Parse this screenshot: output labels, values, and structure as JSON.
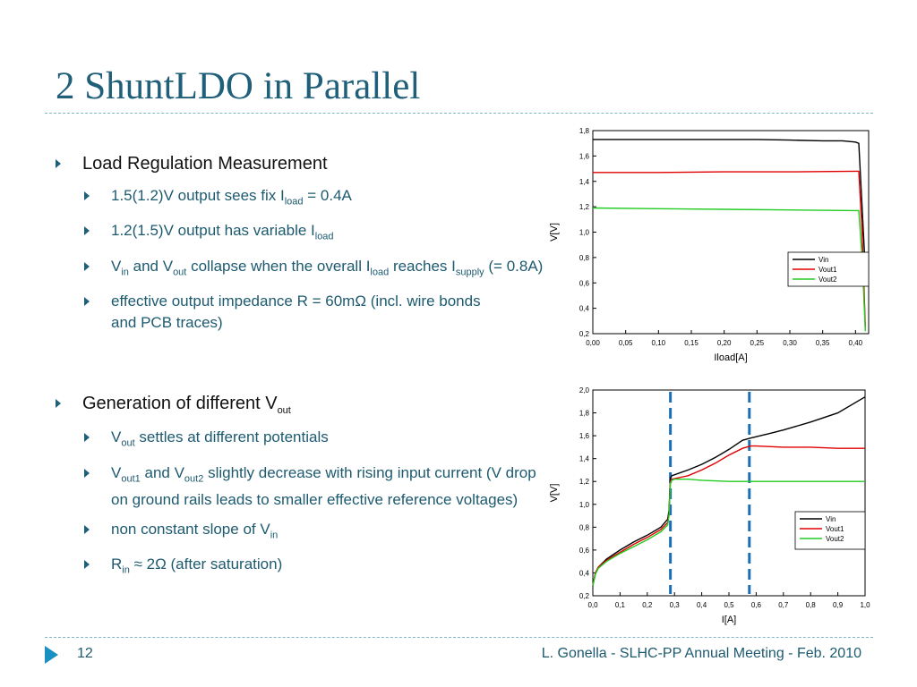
{
  "slide": {
    "title": "2 ShuntLDO in Parallel",
    "page_number": "12",
    "footer": "L. Gonella - SLHC-PP Annual Meeting - Feb. 2010"
  },
  "bullets": {
    "s1": {
      "heading": "Load Regulation Measurement",
      "i1": {
        "a": "1.5(1.2)V output sees fix I",
        "b": "load",
        "c": " = 0.4A"
      },
      "i2": {
        "a": "1.2(1.5)V output has variable I",
        "b": "load"
      },
      "i3": {
        "a": "V",
        "b": "in",
        "c": " and V",
        "d": "out",
        "e": " collapse when the overall I",
        "f": "load",
        "g": " reaches I",
        "h": "supply",
        "i": " (= 0.8A)"
      },
      "i4": {
        "text": "effective output impedance R = 60mΩ (incl. wire bonds and PCB traces)"
      }
    },
    "s2": {
      "heading_a": "Generation of different V",
      "heading_b": "out",
      "i1": {
        "a": "V",
        "b": "out",
        "c": " settles at different potentials"
      },
      "i2": {
        "a": "V",
        "b": "out1",
        "c": " and V",
        "d": "out2",
        "e": " slightly decrease with rising input current (V drop on ground rails leads to smaller effective reference voltages)"
      },
      "i3": {
        "a": "non constant slope of V",
        "b": "in"
      },
      "i4": {
        "a": "R",
        "b": "in",
        "c": " ≈ 2Ω (after saturation)"
      }
    }
  },
  "chart_data": [
    {
      "type": "line",
      "xlabel": "Iload[A]",
      "ylabel": "V[V]",
      "xlim": [
        0,
        0.42
      ],
      "ylim": [
        0.2,
        1.8
      ],
      "xticks": [
        "0,00",
        "0,05",
        "0,10",
        "0,15",
        "0,20",
        "0,25",
        "0,30",
        "0,35",
        "0,40"
      ],
      "xtick_values": [
        0,
        0.05,
        0.1,
        0.15,
        0.2,
        0.25,
        0.3,
        0.35,
        0.4
      ],
      "yticks": [
        "0,2",
        "0,4",
        "0,6",
        "0,8",
        "1,0",
        "1,2",
        "1,4",
        "1,6",
        "1,8"
      ],
      "ytick_values": [
        0.2,
        0.4,
        0.6,
        0.8,
        1.0,
        1.2,
        1.4,
        1.6,
        1.8
      ],
      "legend": "right-middle",
      "series": [
        {
          "name": "Vin",
          "color": "#000000",
          "x": [
            0,
            0.05,
            0.1,
            0.15,
            0.2,
            0.25,
            0.3,
            0.35,
            0.38,
            0.4,
            0.405,
            0.41,
            0.415
          ],
          "y": [
            1.73,
            1.73,
            1.73,
            1.73,
            1.73,
            1.73,
            1.725,
            1.72,
            1.72,
            1.71,
            1.7,
            1.2,
            0.7
          ]
        },
        {
          "name": "Vout1",
          "color": "#e00000",
          "x": [
            0,
            0.1,
            0.2,
            0.3,
            0.4,
            0.405,
            0.41,
            0.415
          ],
          "y": [
            1.47,
            1.47,
            1.475,
            1.475,
            1.48,
            1.48,
            1.0,
            0.25
          ]
        },
        {
          "name": "Vout2",
          "color": "#22cc22",
          "x": [
            0,
            0.1,
            0.2,
            0.3,
            0.4,
            0.405,
            0.41,
            0.415
          ],
          "y": [
            1.19,
            1.185,
            1.18,
            1.175,
            1.17,
            1.17,
            0.8,
            0.22
          ]
        }
      ]
    },
    {
      "type": "line",
      "xlabel": "I[A]",
      "ylabel": "V[V]",
      "xlim": [
        0,
        1.0
      ],
      "ylim": [
        0.2,
        2.0
      ],
      "xticks": [
        "0,0",
        "0,1",
        "0,2",
        "0,3",
        "0,4",
        "0,5",
        "0,6",
        "0,7",
        "0,8",
        "0,9",
        "1,0"
      ],
      "xtick_values": [
        0,
        0.1,
        0.2,
        0.3,
        0.4,
        0.5,
        0.6,
        0.7,
        0.8,
        0.9,
        1.0
      ],
      "yticks": [
        "0,2",
        "0,4",
        "0,6",
        "0,8",
        "1,0",
        "1,2",
        "1,4",
        "1,6",
        "1,8",
        "2,0"
      ],
      "ytick_values": [
        0.2,
        0.4,
        0.6,
        0.8,
        1.0,
        1.2,
        1.4,
        1.6,
        1.8,
        2.0
      ],
      "legend": "bottom-right",
      "vlines": [
        0.285,
        0.575
      ],
      "vline_color": "#1a6fb5",
      "series": [
        {
          "name": "Vin",
          "color": "#000000",
          "x": [
            0,
            0.01,
            0.02,
            0.05,
            0.1,
            0.15,
            0.2,
            0.25,
            0.275,
            0.28,
            0.285,
            0.29,
            0.35,
            0.4,
            0.45,
            0.5,
            0.55,
            0.58,
            0.65,
            0.7,
            0.8,
            0.9,
            1.0
          ],
          "y": [
            0.29,
            0.4,
            0.45,
            0.52,
            0.6,
            0.67,
            0.73,
            0.8,
            0.87,
            0.95,
            1.23,
            1.25,
            1.3,
            1.35,
            1.41,
            1.48,
            1.56,
            1.58,
            1.62,
            1.65,
            1.72,
            1.8,
            1.94
          ]
        },
        {
          "name": "Vout1",
          "color": "#e00000",
          "x": [
            0,
            0.01,
            0.02,
            0.05,
            0.1,
            0.15,
            0.2,
            0.25,
            0.275,
            0.28,
            0.285,
            0.29,
            0.35,
            0.4,
            0.45,
            0.5,
            0.55,
            0.58,
            0.6,
            0.7,
            0.8,
            0.9,
            1.0
          ],
          "y": [
            0.29,
            0.4,
            0.45,
            0.51,
            0.58,
            0.65,
            0.71,
            0.78,
            0.84,
            0.92,
            1.2,
            1.22,
            1.25,
            1.3,
            1.36,
            1.43,
            1.49,
            1.51,
            1.51,
            1.5,
            1.5,
            1.49,
            1.49
          ]
        },
        {
          "name": "Vout2",
          "color": "#22cc22",
          "x": [
            0,
            0.01,
            0.02,
            0.05,
            0.1,
            0.15,
            0.2,
            0.25,
            0.275,
            0.28,
            0.285,
            0.29,
            0.3,
            0.35,
            0.4,
            0.5,
            0.6,
            0.7,
            0.8,
            0.9,
            1.0
          ],
          "y": [
            0.29,
            0.39,
            0.44,
            0.5,
            0.57,
            0.63,
            0.69,
            0.76,
            0.82,
            0.9,
            1.18,
            1.21,
            1.22,
            1.22,
            1.21,
            1.2,
            1.2,
            1.2,
            1.2,
            1.2,
            1.2
          ]
        }
      ]
    }
  ]
}
